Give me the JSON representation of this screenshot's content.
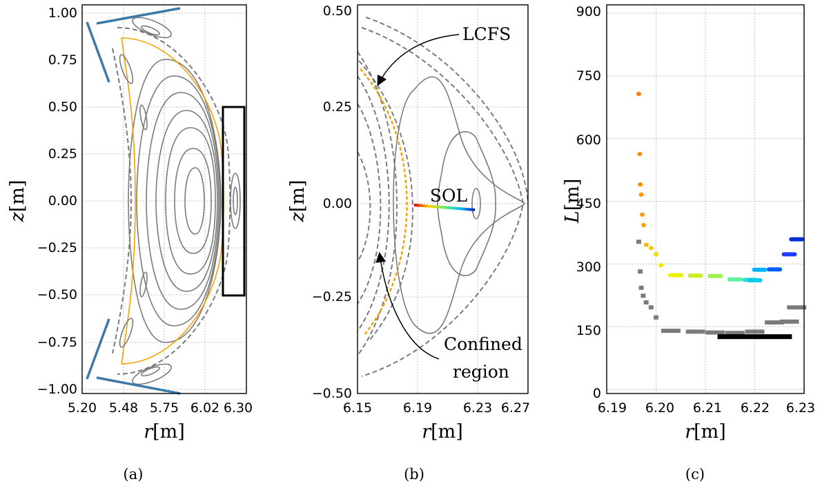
{
  "panels": {
    "a": {
      "caption": "(a)",
      "xlabel_var": "r",
      "xlabel_unit": "[m]",
      "ylabel_var": "z",
      "ylabel_unit": "[m]",
      "xticks": [
        "5.20",
        "5.48",
        "5.75",
        "6.02",
        "6.30"
      ],
      "yticks": [
        "1.00",
        "0.75",
        "0.50",
        "0.25",
        "0.00",
        "−0.25",
        "−0.50",
        "−0.75",
        "−1.00"
      ]
    },
    "b": {
      "caption": "(b)",
      "xlabel_var": "r",
      "xlabel_unit": "[m]",
      "ylabel_var": "z",
      "ylabel_unit": "[m]",
      "xticks": [
        "6.15",
        "6.19",
        "6.23",
        "6.27"
      ],
      "yticks": [
        "0.50",
        "0.25",
        "0.00",
        "−0.25",
        "−0.50"
      ],
      "annotations": {
        "lcfs": "LCFS",
        "sol": "SOL",
        "confined1": "Confined",
        "confined2": "region"
      }
    },
    "c": {
      "caption": "(c)",
      "xlabel_var": "r",
      "xlabel_unit": "[m]",
      "ylabel_var": "L",
      "ylabel_unit": "[m]",
      "xticks": [
        "6.19",
        "6.20",
        "6.21",
        "6.22",
        "6.23"
      ],
      "yticks": [
        "900",
        "750",
        "600",
        "450",
        "300",
        "150",
        "0"
      ]
    }
  },
  "chart_data": [
    {
      "type": "scatter",
      "panel": "a",
      "xlabel": "r[m]",
      "ylabel": "z[m]",
      "xlim": [
        5.2,
        6.3
      ],
      "ylim": [
        -1.04,
        1.04
      ],
      "grid": true,
      "series": []
    },
    {
      "type": "scatter",
      "panel": "b",
      "xlabel": "r[m]",
      "ylabel": "z[m]",
      "xlim": [
        6.15,
        6.27
      ],
      "ylim": [
        -0.52,
        0.52
      ],
      "grid": true,
      "annotations": [
        "LCFS",
        "SOL",
        "Confined region"
      ]
    },
    {
      "type": "scatter",
      "panel": "c",
      "xlabel": "r[m]",
      "ylabel": "L[m]",
      "xlim": [
        6.19,
        6.23
      ],
      "ylim": [
        -10,
        920
      ],
      "grid": true,
      "series": [
        {
          "colors": [
            "#ff7f0e",
            "#ff8c00",
            "#ff8c00",
            "#ff9500",
            "#ff9f00",
            "#ffa500",
            "#ffb300",
            "#ffc800",
            "#ffd700",
            "#ffe000",
            "#e8f000",
            "#c8f020",
            "#a0f050",
            "#60f0a0",
            "#30e0d0",
            "#00c8f0",
            "#00b4ff",
            "#0060ff",
            "#1e3cff",
            "#0030d0"
          ],
          "x": [
            6.1965,
            6.1967,
            6.1968,
            6.197,
            6.1972,
            6.1975,
            6.198,
            6.199,
            6.2,
            6.201,
            6.204,
            6.208,
            6.212,
            6.216,
            6.219,
            6.22,
            6.221,
            6.224,
            6.227,
            6.2285
          ],
          "y": [
            707,
            563,
            490,
            466,
            418,
            393,
            346,
            338,
            323,
            297,
            273,
            272,
            271,
            263,
            262,
            261,
            286,
            287,
            323,
            359
          ]
        },
        {
          "colors": [
            "#7a7a7a"
          ],
          "x": [
            6.1965,
            6.1968,
            6.197,
            6.1974,
            6.198,
            6.199,
            6.2,
            6.203,
            6.208,
            6.212,
            6.216,
            6.22,
            6.224,
            6.227,
            6.2285
          ],
          "y": [
            353,
            282,
            243,
            224,
            208,
            196,
            172,
            140,
            138,
            136,
            135,
            138,
            160,
            162,
            196
          ]
        },
        {
          "colors": [
            "#000000"
          ],
          "x": [
            6.214,
            6.217,
            6.22,
            6.223,
            6.226
          ],
          "y": [
            126,
            126,
            126,
            126,
            126
          ]
        }
      ]
    }
  ]
}
